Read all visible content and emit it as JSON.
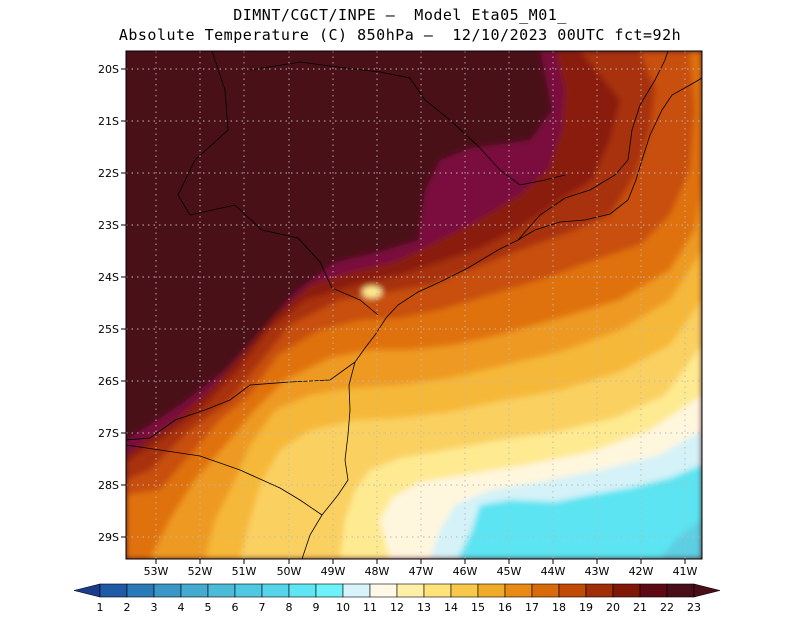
{
  "title_line1": "DIMNT/CGCT/INPE –  Model Eta05_M01_",
  "title_line2": "Absolute Temperature (C) 850hPa –  12/10/2023 00UTC fct=92h",
  "lat_labels": [
    "20S",
    "21S",
    "22S",
    "23S",
    "24S",
    "25S",
    "26S",
    "27S",
    "28S",
    "29S"
  ],
  "lon_labels": [
    "53W",
    "52W",
    "51W",
    "50W",
    "49W",
    "48W",
    "47W",
    "46W",
    "45W",
    "44W",
    "43W",
    "42W",
    "41W"
  ],
  "colorbar": {
    "labels": [
      "1",
      "2",
      "3",
      "4",
      "5",
      "6",
      "7",
      "8",
      "9",
      "10",
      "11",
      "12",
      "13",
      "14",
      "15",
      "16",
      "17",
      "18",
      "19",
      "20",
      "21",
      "22",
      "23"
    ],
    "colors": [
      "#1a3c8c",
      "#1f5aa6",
      "#2a7ab8",
      "#3a96c6",
      "#45aad0",
      "#4bbbd8",
      "#4fc8e2",
      "#55d4ea",
      "#5ee6f4",
      "#6ef2fa",
      "#d8f4fa",
      "#fff8e6",
      "#fff0a8",
      "#ffe27a",
      "#f8c84a",
      "#f0ac28",
      "#e88a14",
      "#d86a0a",
      "#c04a06",
      "#a02e06",
      "#801808",
      "#5e0a14",
      "#4a0e18"
    ]
  },
  "map": {
    "bg_color": "#4a1018",
    "colors": {
      "t22": "#7a0a3e",
      "t21": "#8a1e0e",
      "t20": "#a8300a",
      "t19": "#c8500c",
      "t18": "#e07210",
      "t17": "#ee9a22",
      "t16": "#f6b838",
      "t15": "#fad060",
      "t14": "#feea90",
      "t12": "#fff6de",
      "t11": "#d4f2f8",
      "t9": "#5ce4f2",
      "t8": "#5ccfe2"
    }
  }
}
